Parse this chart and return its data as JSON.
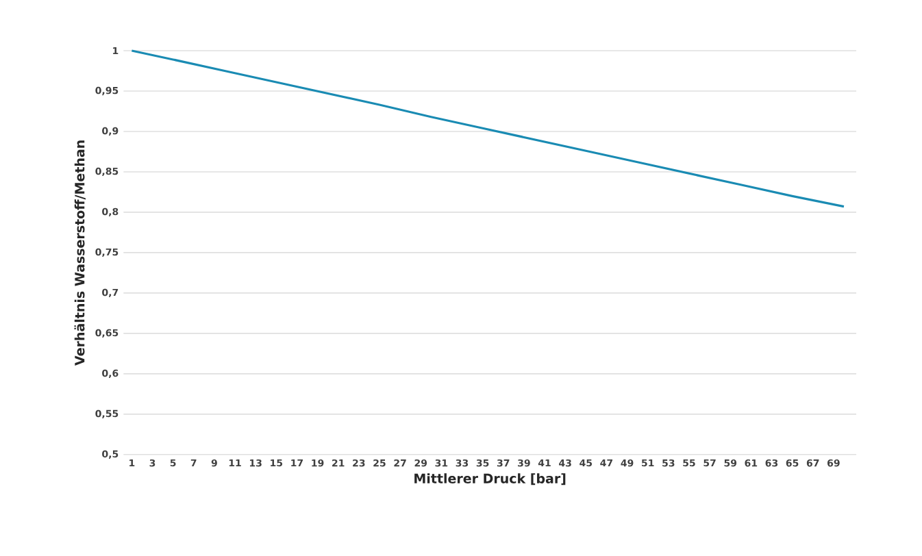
{
  "chart_data": {
    "type": "line",
    "xlabel": "Mittlerer Druck [bar]",
    "ylabel": "Verhältnis Wasserstoff/Methan",
    "x": [
      1,
      5,
      10,
      15,
      20,
      25,
      30,
      35,
      40,
      45,
      50,
      55,
      60,
      65,
      70
    ],
    "series": [
      {
        "color": "#1a8bb3",
        "values": [
          1.0,
          0.989,
          0.975,
          0.961,
          0.947,
          0.933,
          0.918,
          0.904,
          0.89,
          0.876,
          0.862,
          0.848,
          0.834,
          0.82,
          0.807
        ]
      }
    ],
    "xlim": [
      0.2,
      71.2
    ],
    "xticks": [
      1,
      3,
      5,
      7,
      9,
      11,
      13,
      15,
      17,
      19,
      21,
      23,
      25,
      27,
      29,
      31,
      33,
      35,
      37,
      39,
      41,
      43,
      45,
      47,
      49,
      51,
      53,
      55,
      57,
      59,
      61,
      63,
      65,
      67,
      69
    ],
    "ylim": [
      0.5,
      1
    ],
    "yticks": [
      {
        "value": 0.5,
        "label": "0,5"
      },
      {
        "value": 0.55,
        "label": "0,55"
      },
      {
        "value": 0.6,
        "label": "0,6"
      },
      {
        "value": 0.65,
        "label": "0,65"
      },
      {
        "value": 0.7,
        "label": "0,7"
      },
      {
        "value": 0.75,
        "label": "0,75"
      },
      {
        "value": 0.8,
        "label": "0,8"
      },
      {
        "value": 0.85,
        "label": "0,85"
      },
      {
        "value": 0.9,
        "label": "0,9"
      },
      {
        "value": 0.95,
        "label": "0,95"
      },
      {
        "value": 1,
        "label": "1"
      }
    ],
    "grid": "y",
    "marker": "none",
    "line_style": "solid"
  }
}
